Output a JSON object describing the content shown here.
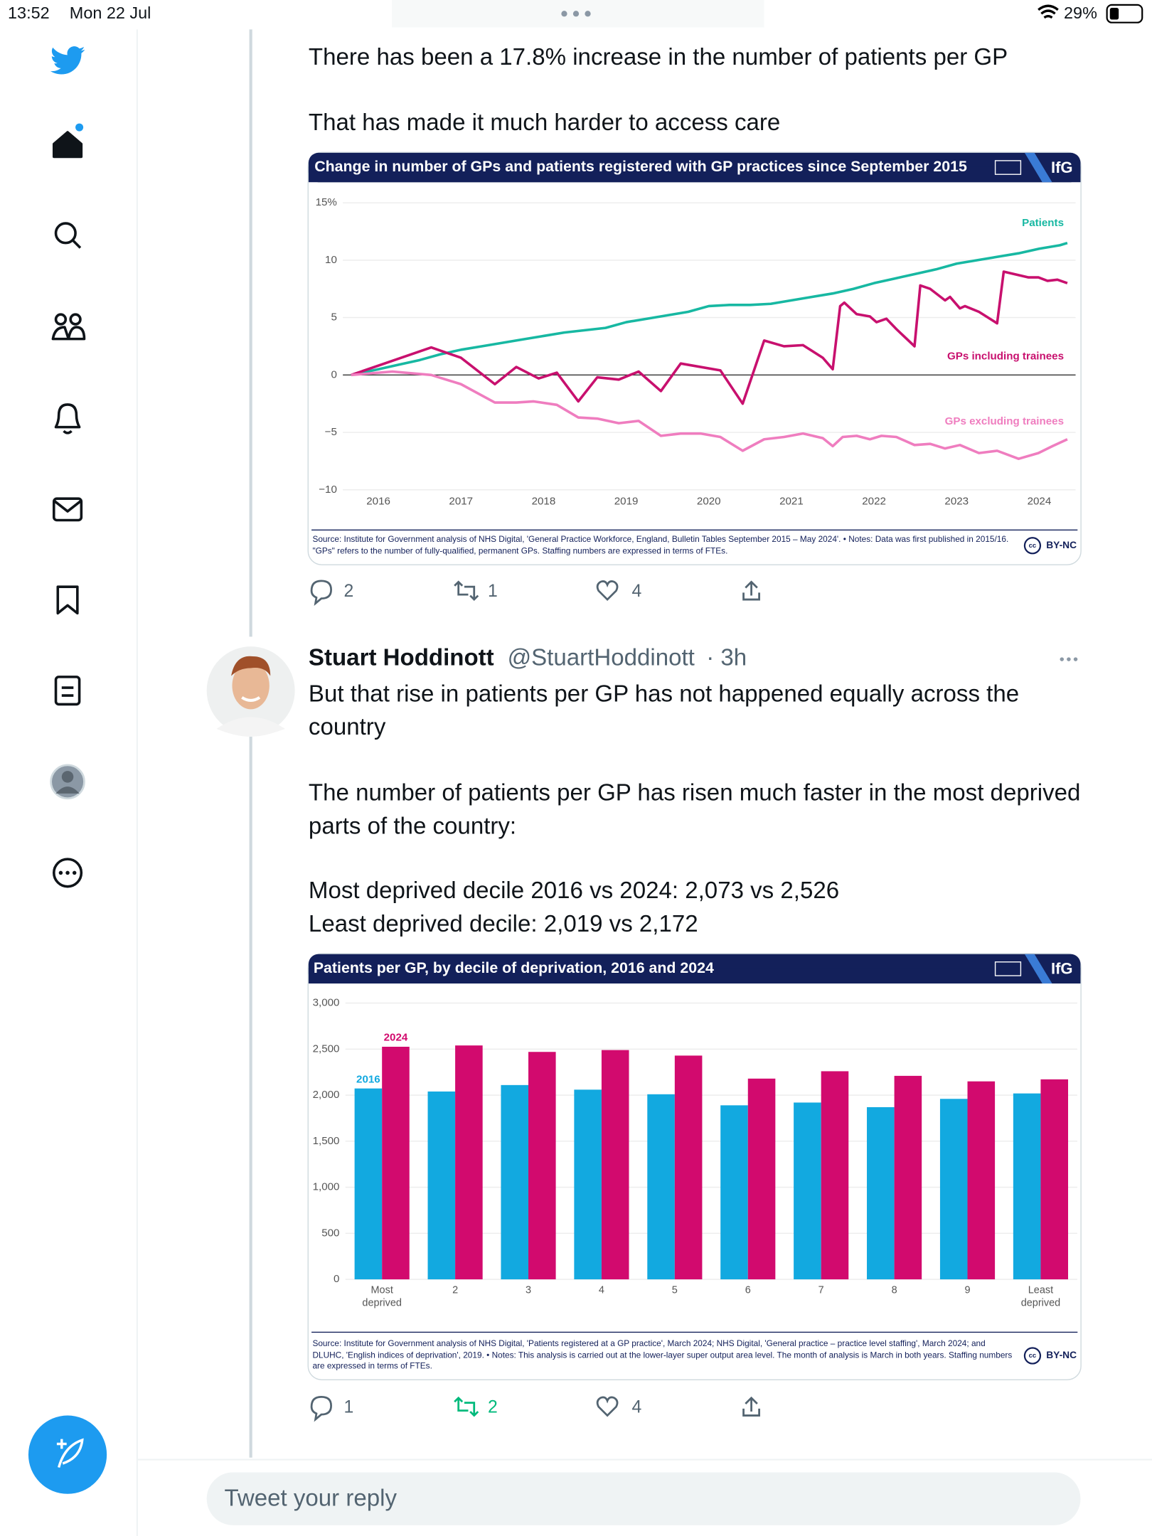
{
  "status_bar": {
    "time": "13:52",
    "date": "Mon 22 Jul",
    "battery": "29%"
  },
  "tweets": [
    {
      "text": [
        "There has been a 17.8% increase in the number of patients per GP",
        "That has made it much harder to access care"
      ],
      "replies": 2,
      "retweets": 1,
      "likes": 4
    },
    {
      "name": "Stuart Hoddinott",
      "handle": "@StuartHoddinott",
      "time": "· 3h",
      "text": [
        "But that rise in patients per GP has not happened equally across the country",
        "The number of patients per GP has risen much faster in the most deprived parts of the country:",
        "Most deprived decile 2016 vs 2024: 2,073 vs 2,526\nLeast deprived decile: 2,019 vs 2,172"
      ],
      "replies": 1,
      "retweets": 2,
      "likes": 4
    }
  ],
  "chart_data": [
    {
      "type": "line",
      "title": "Change in number of GPs and patients registered with GP practices since September 2015",
      "publisher": "IfG",
      "source": "Source: Institute for Government analysis of NHS Digital, 'General Practice Workforce, England, Bulletin Tables September 2015 – May 2024'. • Notes: Data was first published in 2015/16. \"GPs\" refers to the number of fully-qualified, permanent GPs. Staffing numbers are expressed in terms of FTEs.",
      "license": "BY-NC",
      "xlim": [
        2015.57,
        2024.44
      ],
      "xticks": [
        2016,
        2017,
        2018,
        2019,
        2020,
        2021,
        2022,
        2023,
        2024
      ],
      "ylim": [
        -10,
        15
      ],
      "yticks": [
        {
          "value": 15,
          "label": "15%"
        },
        10,
        5,
        0,
        {
          "value": -5,
          "label": "−5"
        },
        {
          "value": -10,
          "label": "−10"
        }
      ],
      "grid": true,
      "series": [
        {
          "name": "Patients",
          "color": "#17b8a2",
          "x": [
            2015.67,
            2016,
            2016.25,
            2016.5,
            2016.75,
            2017,
            2017.25,
            2017.5,
            2017.75,
            2018,
            2018.25,
            2018.5,
            2018.75,
            2019,
            2019.25,
            2019.5,
            2019.75,
            2020,
            2020.25,
            2020.5,
            2020.75,
            2021,
            2021.25,
            2021.5,
            2021.75,
            2022,
            2022.25,
            2022.5,
            2022.75,
            2023,
            2023.25,
            2023.5,
            2023.75,
            2024,
            2024.25,
            2024.34
          ],
          "values": [
            0,
            0.5,
            0.9,
            1.3,
            1.8,
            2.2,
            2.5,
            2.8,
            3.1,
            3.4,
            3.7,
            3.9,
            4.1,
            4.6,
            4.9,
            5.2,
            5.5,
            6.0,
            6.1,
            6.1,
            6.2,
            6.5,
            6.8,
            7.1,
            7.5,
            8.0,
            8.4,
            8.8,
            9.2,
            9.7,
            10.0,
            10.3,
            10.6,
            11.0,
            11.3,
            11.5
          ]
        },
        {
          "name": "GPs including trainees",
          "color": "#c8106e",
          "x": [
            2015.67,
            2016.64,
            2017.0,
            2017.41,
            2017.67,
            2017.94,
            2018.16,
            2018.42,
            2018.65,
            2018.91,
            2019.15,
            2019.42,
            2019.66,
            2020.14,
            2020.41,
            2020.67,
            2020.91,
            2021.14,
            2021.38,
            2021.5,
            2021.59,
            2021.64,
            2021.79,
            2021.95,
            2022.03,
            2022.15,
            2022.27,
            2022.49,
            2022.56,
            2022.68,
            2022.86,
            2022.92,
            2023.04,
            2023.1,
            2023.27,
            2023.49,
            2023.57,
            2023.75,
            2023.87,
            2023.99,
            2024.1,
            2024.22,
            2024.34
          ],
          "values": [
            0,
            2.4,
            1.5,
            -0.8,
            0.7,
            -0.3,
            0.2,
            -2.3,
            -0.2,
            -0.4,
            0.3,
            -1.4,
            1.0,
            0.4,
            -2.5,
            3.0,
            2.5,
            2.6,
            1.5,
            0.5,
            6.0,
            6.3,
            5.3,
            5.1,
            4.6,
            4.9,
            4.0,
            2.5,
            7.8,
            7.5,
            6.5,
            6.8,
            5.8,
            6.0,
            5.5,
            4.5,
            9.0,
            8.7,
            8.5,
            8.5,
            8.2,
            8.3,
            8.0
          ]
        },
        {
          "name": "GPs excluding trainees",
          "color": "#ef7dbf",
          "x": [
            2015.67,
            2016.17,
            2016.64,
            2017.0,
            2017.41,
            2017.67,
            2017.88,
            2018.16,
            2018.42,
            2018.65,
            2018.91,
            2019.15,
            2019.42,
            2019.66,
            2019.9,
            2020.14,
            2020.41,
            2020.67,
            2020.91,
            2021.14,
            2021.38,
            2021.5,
            2021.62,
            2021.79,
            2021.95,
            2022.09,
            2022.27,
            2022.49,
            2022.68,
            2022.86,
            2023.04,
            2023.27,
            2023.49,
            2023.75,
            2023.99,
            2024.16,
            2024.34
          ],
          "values": [
            0,
            0.3,
            0,
            -0.8,
            -2.4,
            -2.4,
            -2.3,
            -2.6,
            -3.7,
            -3.8,
            -4.2,
            -4.0,
            -5.3,
            -5.1,
            -5.1,
            -5.4,
            -6.6,
            -5.6,
            -5.4,
            -5.1,
            -5.5,
            -6.2,
            -5.4,
            -5.3,
            -5.6,
            -5.3,
            -5.4,
            -6.1,
            -6.0,
            -6.4,
            -6.1,
            -6.8,
            -6.6,
            -7.3,
            -6.8,
            -6.2,
            -5.6
          ]
        }
      ]
    },
    {
      "type": "bar",
      "title": "Patients per GP, by decile of deprivation, 2016 and 2024",
      "publisher": "IfG",
      "source": "Source: Institute for Government analysis of NHS Digital, 'Patients registered at a GP practice', March 2024; NHS Digital, 'General practice – practice level staffing', March 2024; and DLUHC, 'English indices of deprivation', 2019. • Notes: This analysis is carried out at the lower-layer super output area level. The month of analysis is March in both years. Staffing numbers are expressed in terms of FTEs.",
      "license": "BY-NC",
      "categories": [
        "Most deprived",
        "2",
        "3",
        "4",
        "5",
        "6",
        "7",
        "8",
        "9",
        "Least deprived"
      ],
      "ylim": [
        0,
        3000
      ],
      "yticks": [
        0,
        500,
        {
          "value": 1000,
          "label": "1,000"
        },
        {
          "value": 1500,
          "label": "1,500"
        },
        {
          "value": 2000,
          "label": "2,000"
        },
        {
          "value": 2500,
          "label": "2,500"
        },
        {
          "value": 3000,
          "label": "3,000"
        }
      ],
      "grid": true,
      "series": [
        {
          "name": "2016",
          "color": "#12a9e0",
          "values": [
            2073,
            2040,
            2110,
            2060,
            2010,
            1890,
            1920,
            1870,
            1960,
            2019
          ]
        },
        {
          "name": "2024",
          "color": "#d20a6e",
          "values": [
            2526,
            2540,
            2470,
            2490,
            2430,
            2180,
            2260,
            2210,
            2150,
            2172
          ]
        }
      ]
    }
  ],
  "reply_box": {
    "placeholder": "Tweet your reply"
  }
}
